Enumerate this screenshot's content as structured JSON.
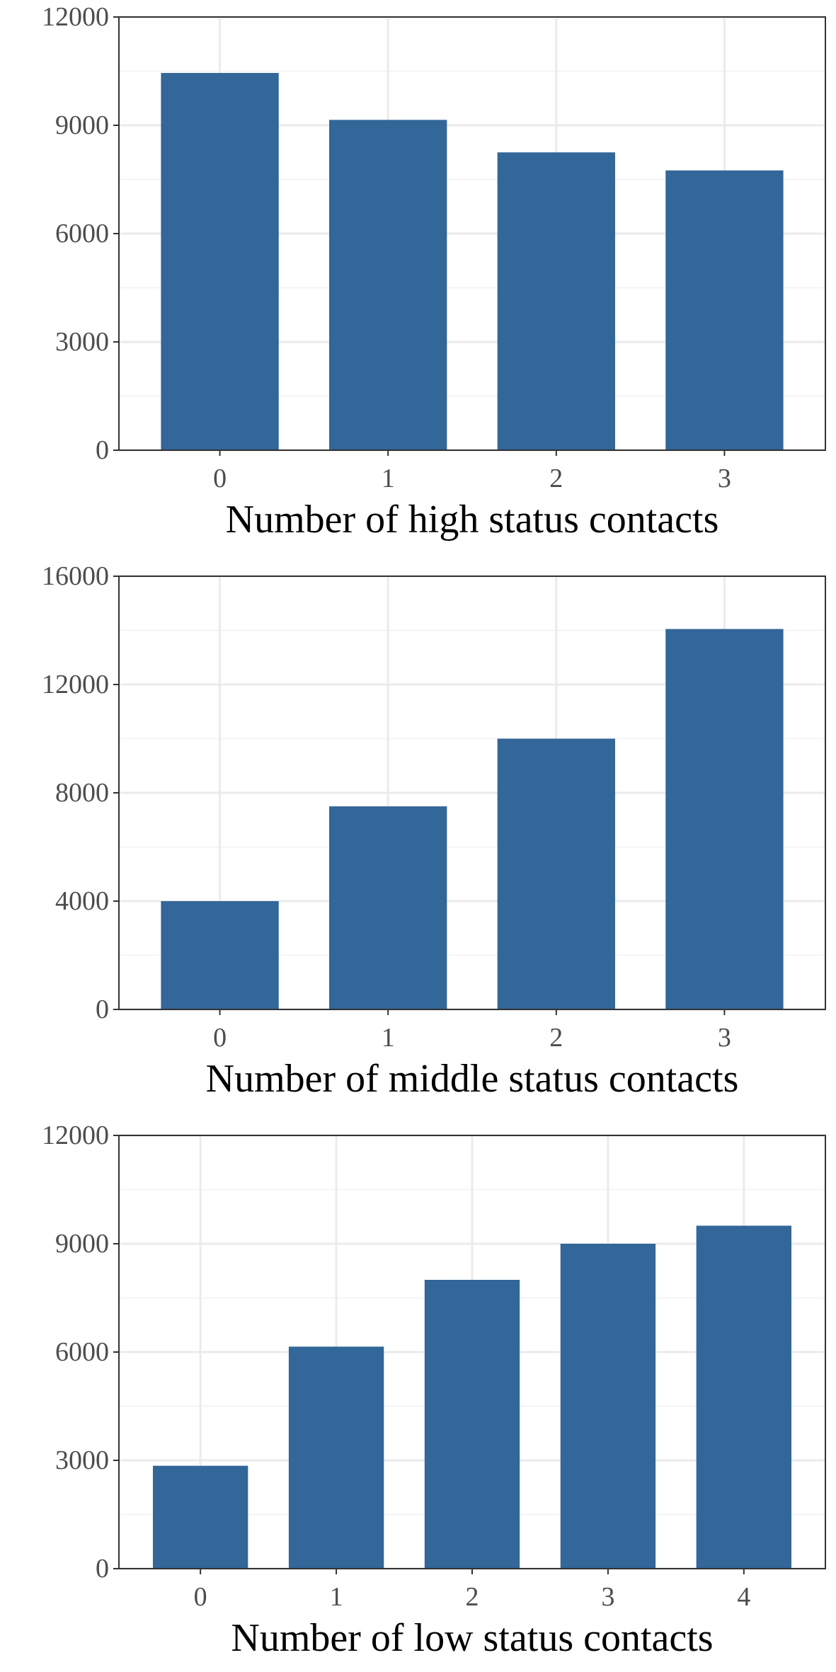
{
  "colors": {
    "bar": "#336699",
    "panel_border": "#333333",
    "grid_major": "#ebebeb",
    "grid_minor": "#f4f4f4",
    "tick_text": "#4d4d4d"
  },
  "chart_data": [
    {
      "type": "bar",
      "categories": [
        "0",
        "1",
        "2",
        "3"
      ],
      "values": [
        10450,
        9150,
        8250,
        7750
      ],
      "title": "",
      "xlabel": "Number of high status contacts",
      "ylabel": "",
      "ylim": [
        0,
        12000
      ],
      "yticks": [
        0,
        3000,
        6000,
        9000,
        12000
      ],
      "ytick_labels": [
        "0",
        "3000",
        "6000",
        "9000",
        "12000"
      ],
      "grid": true,
      "legend": "none"
    },
    {
      "type": "bar",
      "categories": [
        "0",
        "1",
        "2",
        "3"
      ],
      "values": [
        4000,
        7500,
        10000,
        14050
      ],
      "title": "",
      "xlabel": "Number of middle status contacts",
      "ylabel": "",
      "ylim": [
        0,
        16000
      ],
      "yticks": [
        0,
        4000,
        8000,
        12000,
        16000
      ],
      "ytick_labels": [
        "0",
        "4000",
        "8000",
        "12000",
        "16000"
      ],
      "grid": true,
      "legend": "none"
    },
    {
      "type": "bar",
      "categories": [
        "0",
        "1",
        "2",
        "3",
        "4"
      ],
      "values": [
        2850,
        6150,
        8000,
        9000,
        9500
      ],
      "title": "",
      "xlabel": "Number of low status contacts",
      "ylabel": "",
      "ylim": [
        0,
        12000
      ],
      "yticks": [
        0,
        3000,
        6000,
        9000,
        12000
      ],
      "ytick_labels": [
        "0",
        "3000",
        "6000",
        "9000",
        "12000"
      ],
      "grid": true,
      "legend": "none"
    }
  ]
}
